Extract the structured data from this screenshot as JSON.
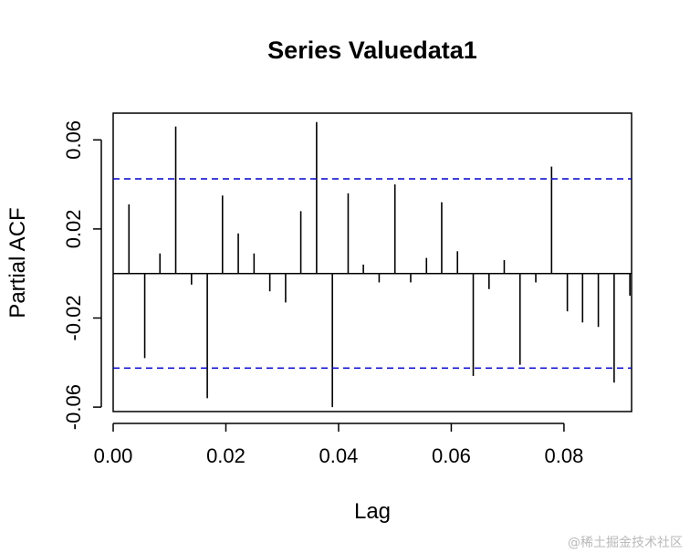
{
  "chart_data": {
    "type": "bar",
    "subtype": "pacf-spikes",
    "title": "Series  Valuedata1",
    "xlabel": "Lag",
    "ylabel": "Partial ACF",
    "xlim": [
      0.0,
      0.092
    ],
    "ylim": [
      -0.062,
      0.072
    ],
    "xticks": [
      0.0,
      0.02,
      0.04,
      0.06,
      0.08
    ],
    "xtick_labels": [
      "0.00",
      "0.02",
      "0.04",
      "0.06",
      "0.08"
    ],
    "yticks": [
      -0.06,
      -0.02,
      0.02,
      0.06
    ],
    "ytick_labels": [
      "-0.06",
      "-0.02",
      "0.02",
      "0.06"
    ],
    "confidence_bound": 0.0425,
    "confidence_color": "#0000cc",
    "spike_color": "#000000",
    "lags": [
      0.0028,
      0.0056,
      0.0083,
      0.0111,
      0.0139,
      0.0167,
      0.0194,
      0.0222,
      0.025,
      0.0278,
      0.0306,
      0.0333,
      0.0361,
      0.0389,
      0.0417,
      0.0444,
      0.0472,
      0.05,
      0.0528,
      0.0556,
      0.0583,
      0.0611,
      0.0639,
      0.0667,
      0.0694,
      0.0722,
      0.075,
      0.0778,
      0.0806,
      0.0833,
      0.0861,
      0.0889,
      0.0917
    ],
    "values": [
      0.031,
      -0.038,
      0.009,
      0.066,
      -0.005,
      -0.056,
      0.035,
      0.018,
      0.009,
      -0.008,
      -0.013,
      0.028,
      0.068,
      -0.06,
      0.036,
      0.004,
      -0.004,
      0.04,
      -0.004,
      0.007,
      0.032,
      0.01,
      -0.046,
      -0.007,
      0.006,
      -0.041,
      -0.004,
      0.048,
      -0.017,
      -0.022,
      -0.024,
      -0.049,
      -0.01
    ]
  },
  "watermark": "@稀土掘金技术社区"
}
